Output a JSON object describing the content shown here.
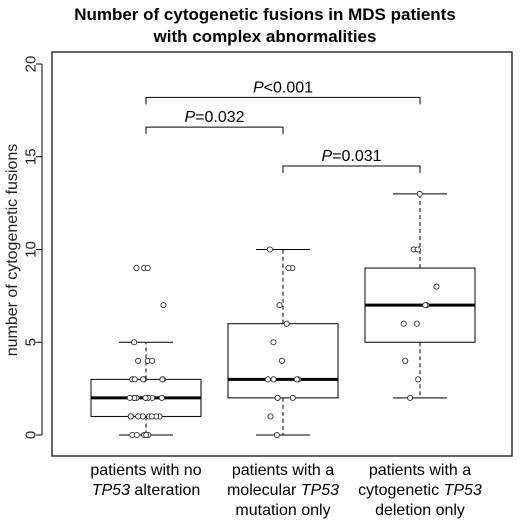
{
  "chart_data": {
    "type": "box",
    "title_lines": [
      "Number of cytogenetic fusions in MDS patients",
      "with complex abnormalities"
    ],
    "ylabel": "number of cytogenetic  fusions",
    "ylim": [
      0,
      20
    ],
    "yticks": [
      "0",
      "5",
      "10",
      "15",
      "20"
    ],
    "grid": false,
    "categories": [
      {
        "lines": [
          [
            {
              "text": "patients with no",
              "italic": false
            }
          ],
          [
            {
              "text": "TP53",
              "italic": true
            },
            {
              "text": " alteration",
              "italic": false
            }
          ]
        ]
      },
      {
        "lines": [
          [
            {
              "text": "patients with a",
              "italic": false
            }
          ],
          [
            {
              "text": "molecular ",
              "italic": false
            },
            {
              "text": "TP53",
              "italic": true
            }
          ],
          [
            {
              "text": "mutation only",
              "italic": false
            }
          ]
        ]
      },
      {
        "lines": [
          [
            {
              "text": "patients with a",
              "italic": false
            }
          ],
          [
            {
              "text": "cytogenetic ",
              "italic": false
            },
            {
              "text": "TP53",
              "italic": true
            }
          ],
          [
            {
              "text": "deletion only",
              "italic": false
            }
          ]
        ]
      }
    ],
    "boxes": [
      {
        "whisker_low": 0,
        "q1": 1,
        "median": 2,
        "q3": 3,
        "whisker_high": 5
      },
      {
        "whisker_low": 0,
        "q1": 2,
        "median": 3,
        "q3": 6,
        "whisker_high": 10
      },
      {
        "whisker_low": 2,
        "q1": 5,
        "median": 7,
        "q3": 9,
        "whisker_high": 13
      }
    ],
    "points": [
      [
        0,
        0,
        0,
        0,
        0,
        0,
        1,
        1,
        1,
        1,
        1,
        1,
        1,
        1,
        2,
        2,
        2,
        2,
        2,
        2,
        2,
        2,
        2,
        3,
        3,
        3,
        3,
        3,
        3,
        4,
        4,
        4,
        5,
        7,
        9,
        9,
        9
      ],
      [
        0,
        1,
        2,
        2,
        2,
        3,
        3,
        3,
        3,
        4,
        5,
        6,
        7,
        9,
        9,
        10
      ],
      [
        2,
        3,
        4,
        6,
        6,
        7,
        7,
        8,
        10,
        10,
        13
      ]
    ],
    "comparisons": [
      {
        "from": 0,
        "to": 1,
        "label_prefix": "P",
        "label_suffix": "=0.032",
        "level": 16.6
      },
      {
        "from": 1,
        "to": 2,
        "label_prefix": "P",
        "label_suffix": "=0.031",
        "level": 14.5
      },
      {
        "from": 0,
        "to": 2,
        "label_prefix": "P",
        "label_suffix": "<0.001",
        "level": 18.2
      }
    ]
  }
}
